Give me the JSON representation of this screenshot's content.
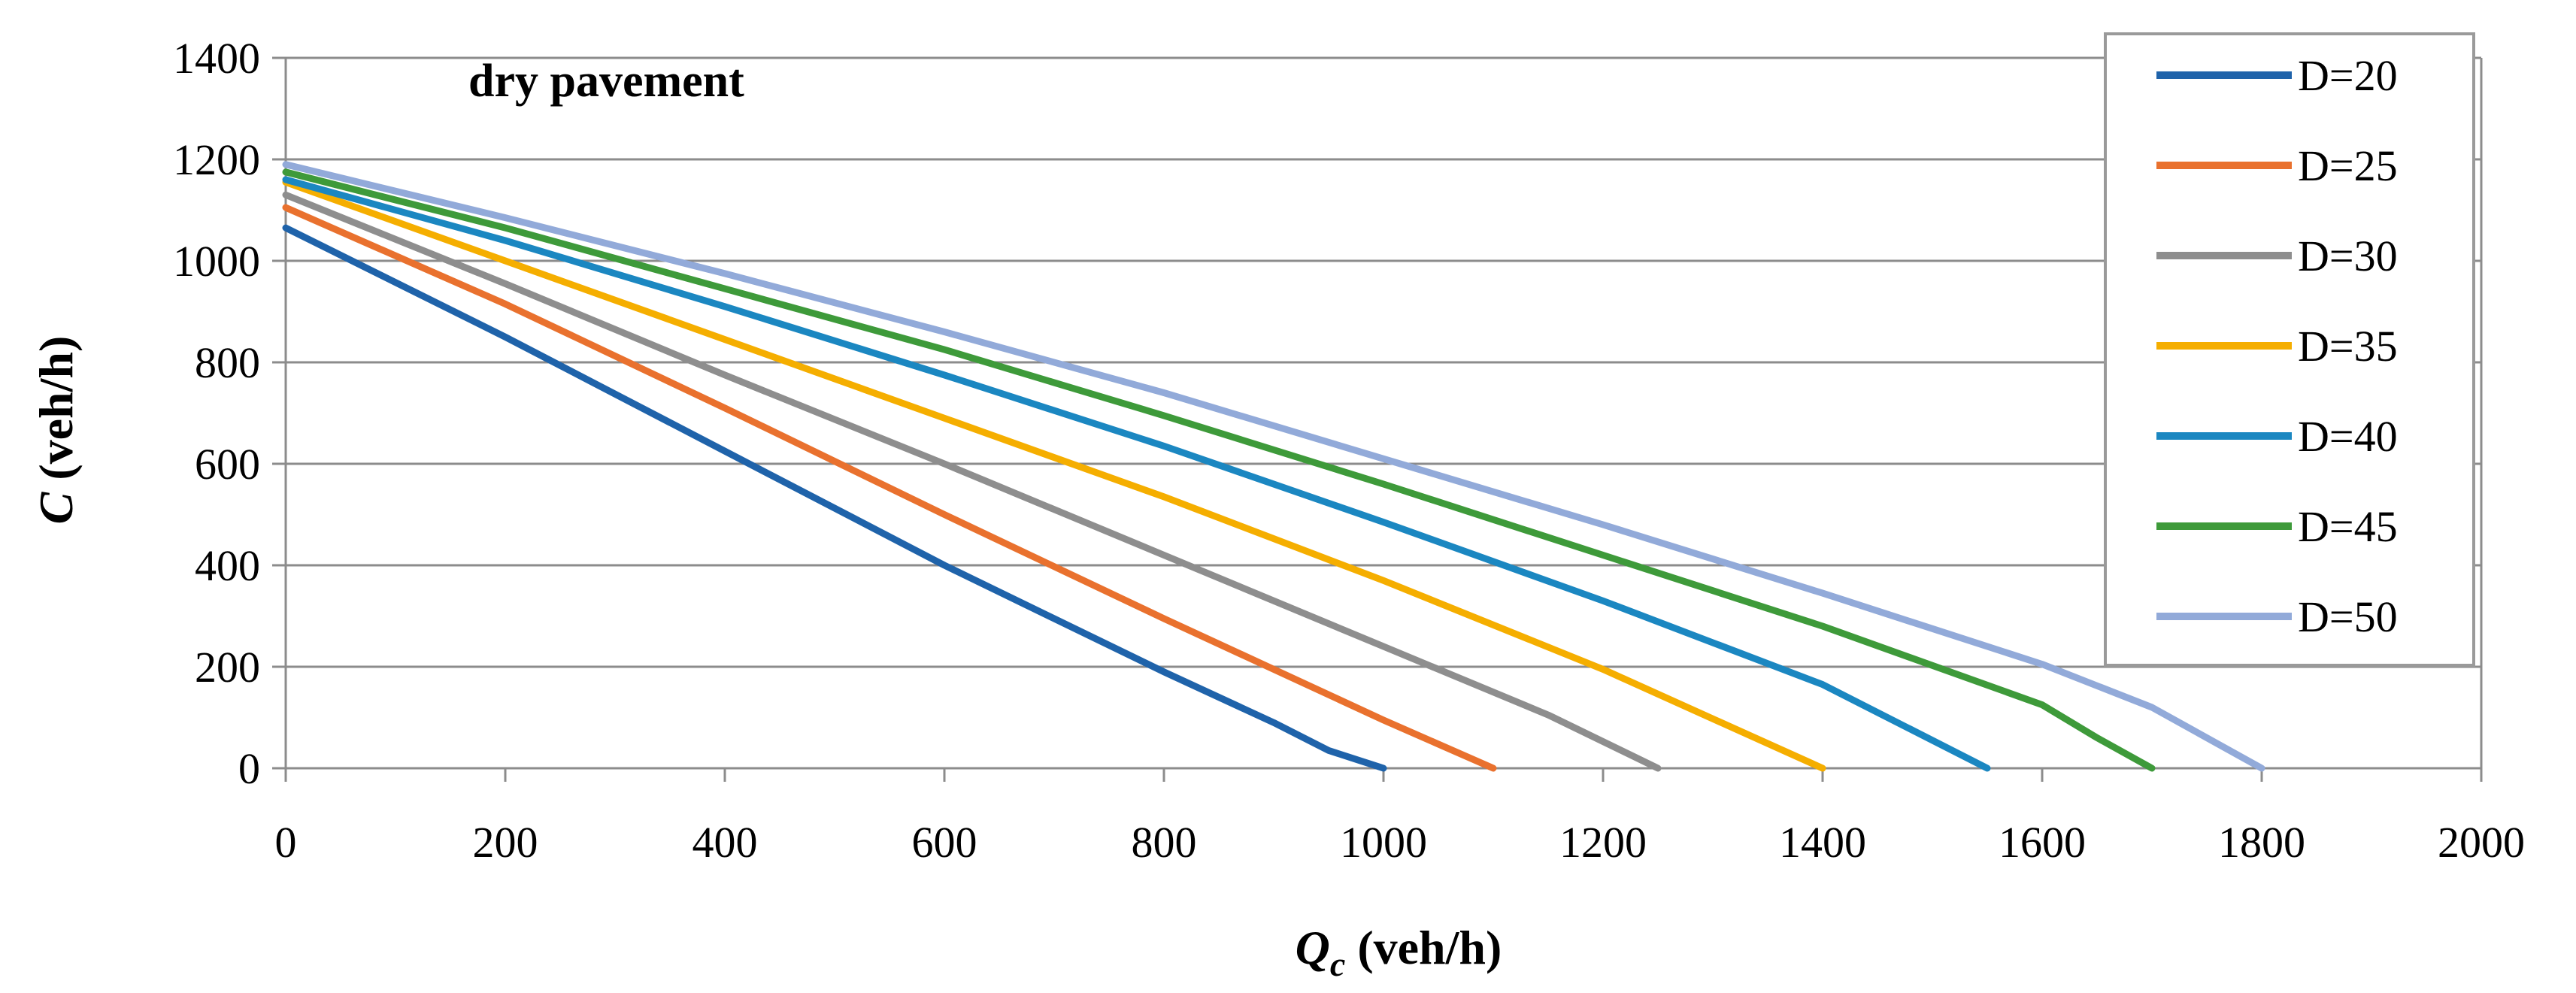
{
  "chart_data": {
    "type": "line",
    "title": "",
    "annotation": "dry pavement",
    "xlabel": {
      "symbol": "Q",
      "subscript": "c",
      "unit": " (veh/h)"
    },
    "ylabel": {
      "symbol": "C",
      "unit": " (veh/h)"
    },
    "xlim": [
      0,
      2000
    ],
    "ylim": [
      0,
      1400
    ],
    "xticks": [
      "0",
      "200",
      "400",
      "600",
      "800",
      "1000",
      "1200",
      "1400",
      "1600",
      "1800",
      "2000"
    ],
    "yticks": [
      "0",
      "200",
      "400",
      "600",
      "800",
      "1000",
      "1200",
      "1400"
    ],
    "grid": "horizontal",
    "legend_position": "top-right",
    "series": [
      {
        "name": "D=20",
        "color": "#1F63AA",
        "x": [
          0,
          200,
          400,
          600,
          800,
          900,
          950,
          1000
        ],
        "y": [
          1065,
          850,
          625,
          400,
          190,
          90,
          35,
          0
        ]
      },
      {
        "name": "D=25",
        "color": "#E9712E",
        "x": [
          0,
          200,
          400,
          600,
          800,
          1000,
          1100
        ],
        "y": [
          1105,
          915,
          710,
          500,
          295,
          95,
          0
        ]
      },
      {
        "name": "D=30",
        "color": "#8E8E8E",
        "x": [
          0,
          200,
          400,
          600,
          800,
          1000,
          1150,
          1250
        ],
        "y": [
          1130,
          955,
          775,
          600,
          420,
          240,
          105,
          0
        ]
      },
      {
        "name": "D=35",
        "color": "#F5AE00",
        "x": [
          0,
          200,
          400,
          600,
          800,
          1000,
          1200,
          1400
        ],
        "y": [
          1155,
          1000,
          845,
          690,
          535,
          370,
          195,
          0
        ]
      },
      {
        "name": "D=40",
        "color": "#1B87C1",
        "x": [
          0,
          200,
          400,
          600,
          800,
          1000,
          1200,
          1400,
          1550
        ],
        "y": [
          1160,
          1040,
          910,
          775,
          635,
          485,
          330,
          165,
          0
        ]
      },
      {
        "name": "D=45",
        "color": "#3E9A3A",
        "x": [
          0,
          200,
          400,
          600,
          800,
          1000,
          1200,
          1400,
          1600,
          1650,
          1700
        ],
        "y": [
          1175,
          1065,
          945,
          825,
          695,
          560,
          420,
          280,
          125,
          60,
          0
        ]
      },
      {
        "name": "D=50",
        "color": "#92AAD9",
        "x": [
          0,
          200,
          400,
          600,
          800,
          1000,
          1200,
          1400,
          1600,
          1700,
          1800
        ],
        "y": [
          1190,
          1085,
          975,
          860,
          740,
          610,
          480,
          345,
          205,
          120,
          0
        ]
      }
    ]
  }
}
